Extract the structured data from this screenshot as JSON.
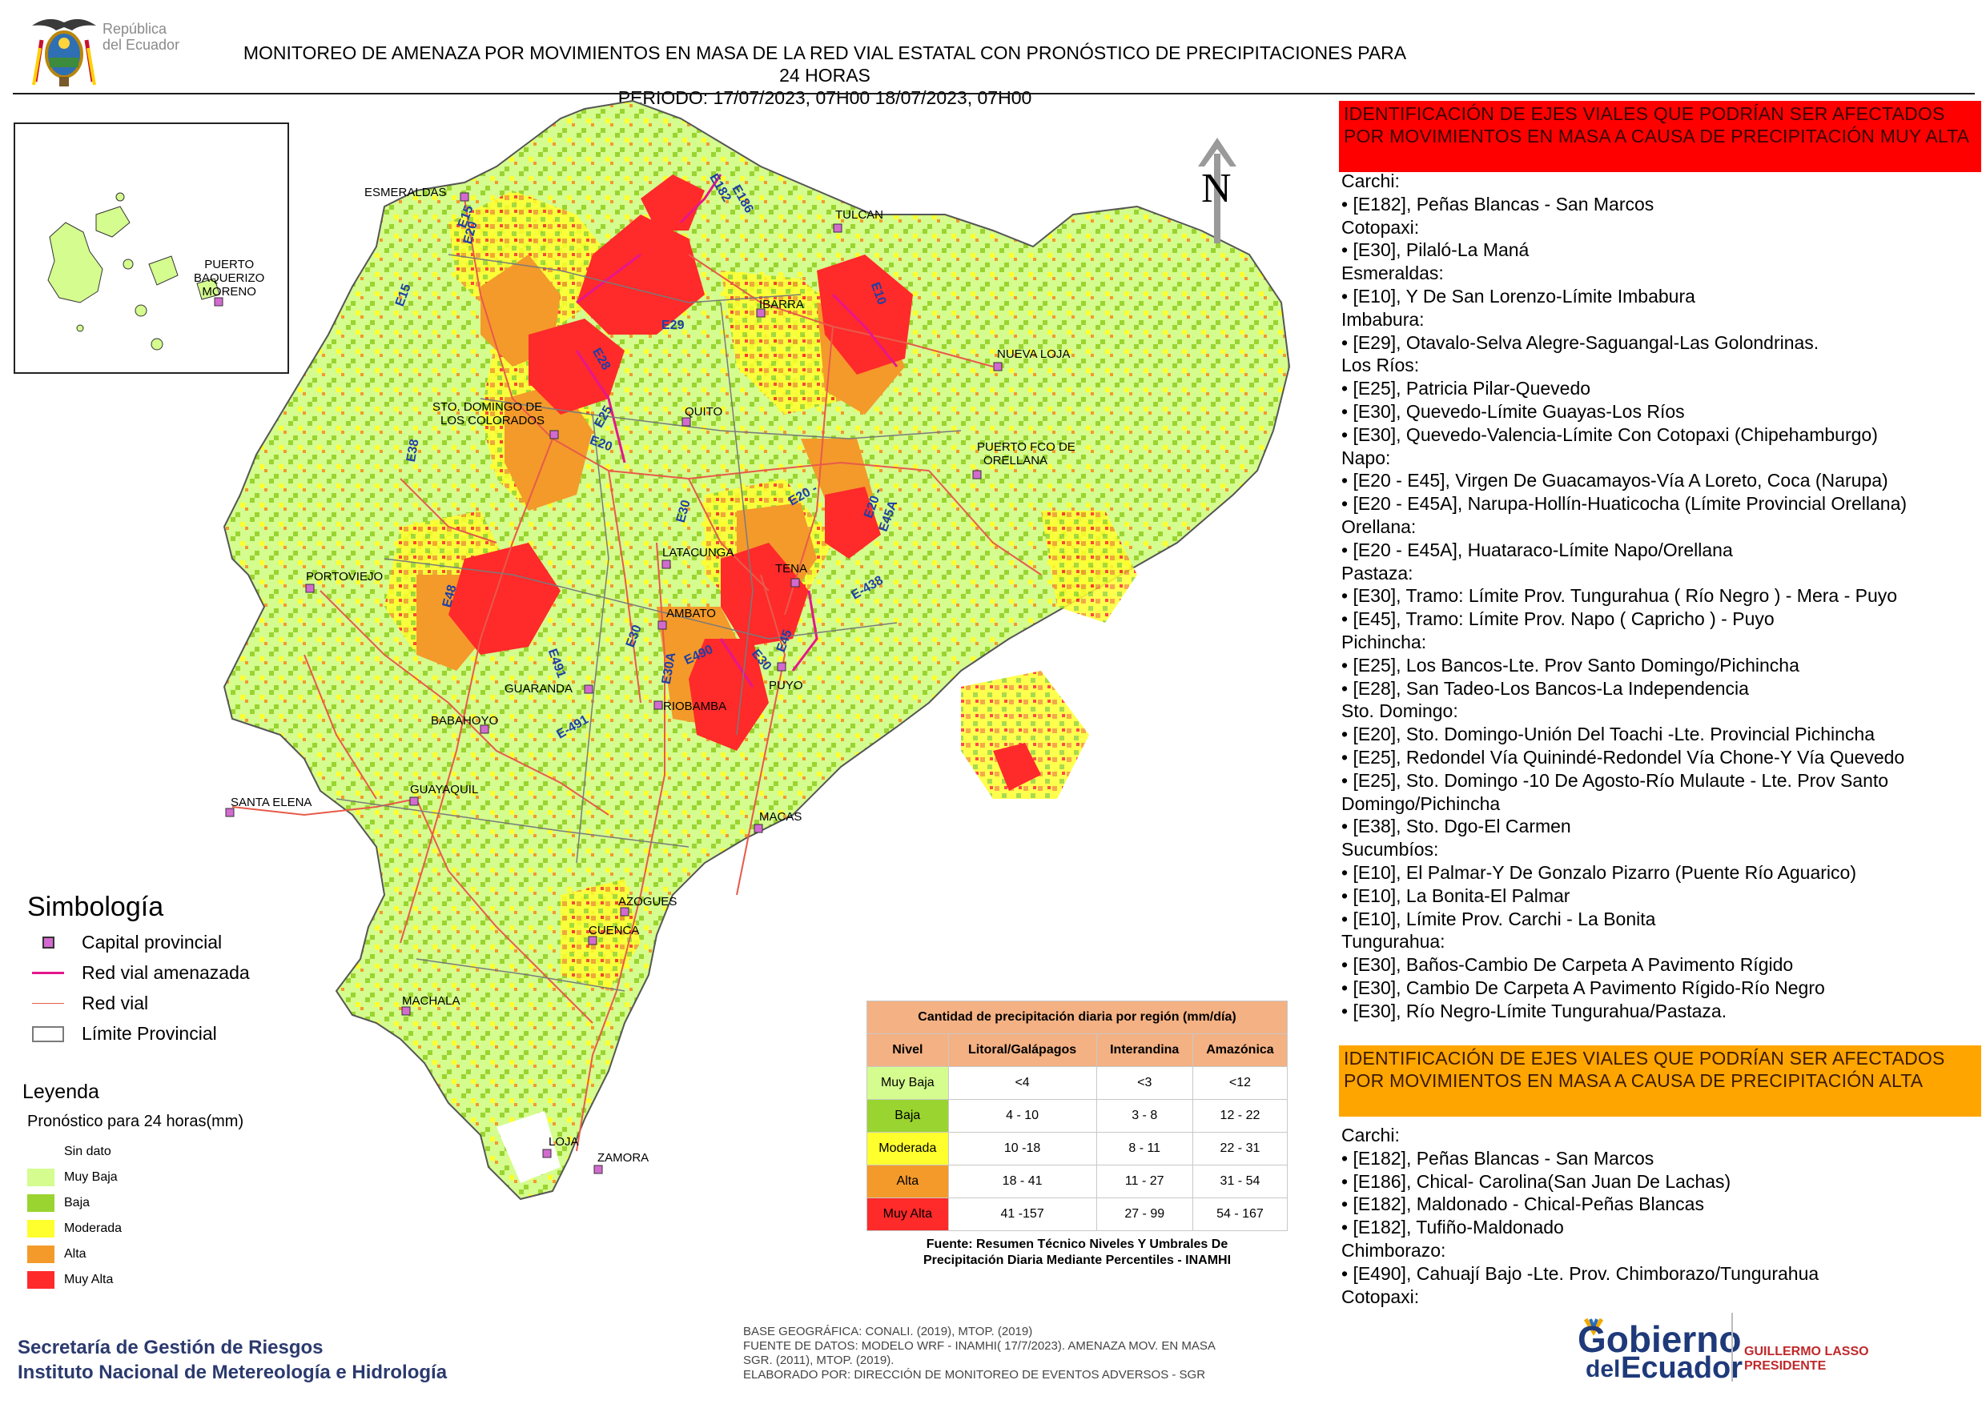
{
  "header": {
    "country_line1": "República",
    "country_line2": "del Ecuador",
    "title_line1": "MONITOREO DE AMENAZA POR MOVIMIENTOS EN MASA DE LA RED VIAL  ESTATAL  CON PRONÓSTICO  DE  PRECIPITACIONES PARA 24 HORAS",
    "title_line2": "PERIODO: 17/07/2023, 07H00 18/07/2023, 07H00"
  },
  "compass": {
    "label": "N"
  },
  "cities": {
    "esmeraldas": "ESMERALDAS",
    "tulcan": "TULCAN",
    "ibarra": "IBARRA",
    "nueva_loja": "NUEVA LOJA",
    "sto_domingo_1": "STO. DOMINGO DE",
    "sto_domingo_2": "LOS COLORADOS",
    "quito": "QUITO",
    "orellana_1": "PUERTO FCO DE",
    "orellana_2": "ORELLANA",
    "portoviejo": "PORTOVIEJO",
    "latacunga": "LATACUNGA",
    "tena": "TENA",
    "ambato": "AMBATO",
    "guaranda": "GUARANDA",
    "riobamba": "RIOBAMBA",
    "puyo": "PUYO",
    "babahoyo": "BABAHOYO",
    "guayaquil": "GUAYAQUIL",
    "santa_elena": "SANTA ELENA",
    "macas": "MACAS",
    "azogues": "AZOGUES",
    "cuenca": "CUENCA",
    "machala": "MACHALA",
    "loja": "LOJA",
    "zamora": "ZAMORA",
    "baquerizo_1": "PUERTO",
    "baquerizo_2": "BAQUERIZO",
    "baquerizo_3": "MORENO"
  },
  "roads": {
    "e15a": "E15",
    "e15b": "E15",
    "e20a": "E20",
    "e20b": "E20",
    "e182": "E182",
    "e186": "E186",
    "e10": "E10",
    "e29": "E29",
    "e28": "E28",
    "e25": "E25",
    "e38": "E38",
    "e30a": "E30",
    "e20_45": "E20 -",
    "e45a": "E45A",
    "e20c": "E20 -",
    "e438": "E-438",
    "e48": "E48",
    "e491a": "E491",
    "e491b": "E-491",
    "e30b": "E30",
    "e30c": "E30A",
    "e490": "E490",
    "e30d": "E30",
    "e45": "E45"
  },
  "symbology": {
    "title": "Simbología",
    "capital": "Capital provincial",
    "threatened": "Red vial amenazada",
    "road": "Red vial",
    "limit": "Límite Provincial"
  },
  "legend": {
    "title": "Leyenda",
    "subtitle": "Pronóstico para 24 horas(mm)",
    "items": [
      "Sin dato",
      "Muy Baja",
      "Baja",
      "Moderada",
      "Alta",
      "Muy Alta"
    ],
    "colors": {
      "sin_dato": "#ffffff",
      "muy_baja": "#d4fc8e",
      "baja": "#9ad430",
      "moderada": "#ffff2e",
      "alta": "#f39a2b",
      "muy_alta": "#ff2a2a"
    }
  },
  "precip_table": {
    "title": "Cantidad de precipitación diaria por región (mm/día)",
    "headers": [
      "Nivel",
      "Litoral/Galápagos",
      "Interandina",
      "Amazónica"
    ],
    "rows": [
      {
        "nivel": "Muy Baja",
        "litoral": "<4",
        "interandina": "<3",
        "amazonica": "<12"
      },
      {
        "nivel": "Baja",
        "litoral": "4 - 10",
        "interandina": "3 - 8",
        "amazonica": "12 - 22"
      },
      {
        "nivel": "Moderada",
        "litoral": "10 -18",
        "interandina": "8 - 11",
        "amazonica": "22 - 31"
      },
      {
        "nivel": "Alta",
        "litoral": "18 - 41",
        "interandina": "11 - 27",
        "amazonica": "31 - 54"
      },
      {
        "nivel": "Muy Alta",
        "litoral": "41 -157",
        "interandina": "27 - 99",
        "amazonica": "54 - 167"
      }
    ],
    "caption1": "Fuente: Resumen Técnico Niveles Y Umbrales De",
    "caption2": "Precipitación Diaria Mediante Percentiles - INAMHI"
  },
  "footer": {
    "sgr_line1": "Secretaría de Gestión de Riesgos",
    "sgr_line2": "Instituto Nacional de Metereología e Hidrología",
    "base_line1": "BASE GEOGRÁFICA: CONALI. (2019), MTOP. (2019)",
    "base_line2": "FUENTE DE DATOS: MODELO WRF - INAMHI( 17/7/2023).  AMENAZA MOV. EN MASA",
    "base_line3": "SGR. (2011), MTOP. (2019).",
    "base_line4": "ELABORADO POR: DIRECCIÓN DE MONITOREO DE EVENTOS ADVERSOS - SGR",
    "gob_1": "Gobierno",
    "gob_2": "del",
    "gob_3": "Ecuador",
    "pres_1": "GUILLERMO LASSO",
    "pres_2": "PRESIDENTE"
  },
  "panel_muy_alta": {
    "heading": "IDENTIFICACIÓN DE EJES VIALES QUE PODRÍAN SER AFECTADOS POR MOVIMIENTOS EN MASA A CAUSA DE PRECIPITACIÓN MUY ALTA",
    "lines": [
      "Carchi:",
      "• [E182], Peñas Blancas - San Marcos",
      "Cotopaxi:",
      "• [E30], Pilaló-La Maná",
      "Esmeraldas:",
      "• [E10], Y De San Lorenzo-Límite Imbabura",
      "Imbabura:",
      "• [E29], Otavalo-Selva Alegre-Saguangal-Las Golondrinas.",
      "Los Ríos:",
      "• [E25], Patricia Pilar-Quevedo",
      "• [E30], Quevedo-Límite Guayas-Los Ríos",
      "• [E30], Quevedo-Valencia-Límite Con Cotopaxi (Chipehamburgo)",
      "Napo:",
      "• [E20 - E45], Virgen De Guacamayos-Vía A Loreto, Coca (Narupa)",
      "• [E20 - E45A], Narupa-Hollín-Huaticocha (Límite Provincial Orellana)",
      "Orellana:",
      "• [E20 - E45A], Huataraco-Límite Napo/Orellana",
      "Pastaza:",
      "• [E30], Tramo: Límite Prov. Tungurahua ( Río Negro ) - Mera - Puyo",
      "• [E45], Tramo: Límite Prov. Napo ( Capricho ) - Puyo",
      "Pichincha:",
      "• [E25], Los Bancos-Lte. Prov Santo Domingo/Pichincha",
      "• [E28], San Tadeo-Los Bancos-La Independencia",
      "Sto. Domingo:",
      "• [E20], Sto. Domingo-Unión Del Toachi -Lte. Provincial Pichincha",
      "• [E25], Redondel Vía Quinindé-Redondel Vía Chone-Y Vía Quevedo",
      "• [E25], Sto. Domingo -10 De Agosto-Río Mulaute - Lte. Prov Santo Domingo/Pichincha",
      "• [E38], Sto. Dgo-El Carmen",
      "Sucumbíos:",
      "• [E10], El Palmar-Y De Gonzalo Pizarro (Puente Río Aguarico)",
      "• [E10], La Bonita-El Palmar",
      "• [E10], Límite Prov. Carchi - La Bonita",
      "Tungurahua:",
      "• [E30], Baños-Cambio De Carpeta A Pavimento Rígido",
      "• [E30], Cambio De Carpeta A Pavimento Rígido-Río Negro",
      "• [E30], Río Negro-Límite Tungurahua/Pastaza."
    ]
  },
  "panel_alta": {
    "heading": "IDENTIFICACIÓN DE EJES VIALES QUE PODRÍAN SER AFECTADOS POR MOVIMIENTOS EN MASA A CAUSA DE PRECIPITACIÓN  ALTA",
    "lines": [
      "Carchi:",
      "• [E182], Peñas Blancas - San Marcos",
      "• [E186], Chical- Carolina(San Juan De Lachas)",
      "• [E182], Maldonado - Chical-Peñas Blancas",
      "• [E182], Tufiño-Maldonado",
      "Chimborazo:",
      "• [E490], Cahuají Bajo -Lte. Prov. Chimborazo/Tungurahua",
      "Cotopaxi:"
    ]
  }
}
